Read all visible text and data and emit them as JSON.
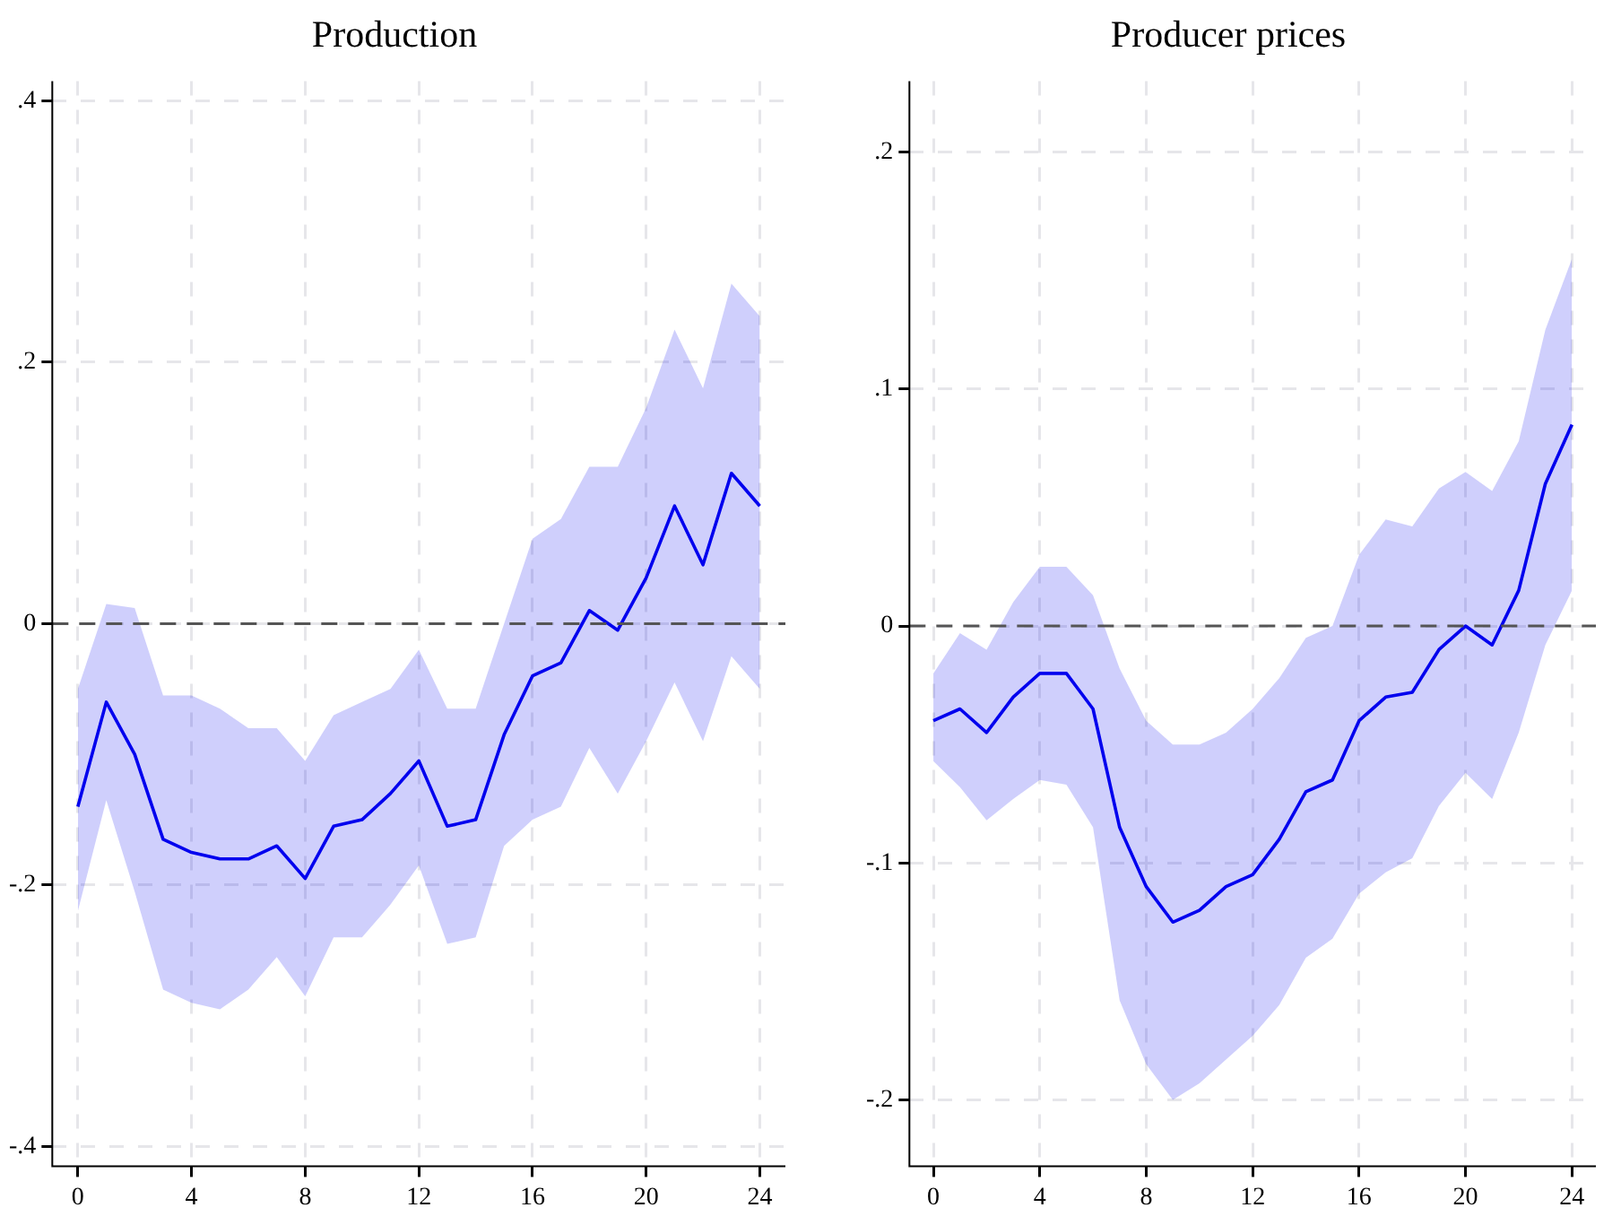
{
  "chart_data": [
    {
      "type": "line",
      "title": "Production",
      "x": [
        0,
        1,
        2,
        3,
        4,
        5,
        6,
        7,
        8,
        9,
        10,
        11,
        12,
        13,
        14,
        15,
        16,
        17,
        18,
        19,
        20,
        21,
        22,
        23,
        24
      ],
      "series": [
        {
          "color": "#0000ee",
          "values": [
            -0.14,
            -0.06,
            -0.1,
            -0.165,
            -0.175,
            -0.18,
            -0.18,
            -0.17,
            -0.195,
            -0.155,
            -0.15,
            -0.13,
            -0.105,
            -0.155,
            -0.15,
            -0.085,
            -0.04,
            -0.03,
            0.01,
            -0.005,
            0.035,
            0.09,
            0.045,
            0.115,
            0.09
          ],
          "lower": [
            -0.22,
            -0.135,
            -0.205,
            -0.28,
            -0.29,
            -0.295,
            -0.28,
            -0.255,
            -0.285,
            -0.24,
            -0.24,
            -0.215,
            -0.185,
            -0.245,
            -0.24,
            -0.17,
            -0.15,
            -0.14,
            -0.095,
            -0.13,
            -0.09,
            -0.045,
            -0.09,
            -0.025,
            -0.05
          ],
          "upper": [
            -0.05,
            0.015,
            0.012,
            -0.055,
            -0.055,
            -0.065,
            -0.08,
            -0.08,
            -0.105,
            -0.07,
            -0.06,
            -0.05,
            -0.02,
            -0.065,
            -0.065,
            0.0,
            0.065,
            0.08,
            0.12,
            0.12,
            0.165,
            0.225,
            0.18,
            0.26,
            0.235
          ]
        }
      ],
      "xlim": [
        -0.9,
        24.9
      ],
      "xticks": [
        0,
        4,
        8,
        12,
        16,
        20,
        24
      ],
      "ylim": [
        -0.415,
        0.415
      ],
      "yticks": [
        {
          "value": -0.4,
          "label": "-.4"
        },
        {
          "value": -0.2,
          "label": "-.2"
        },
        0,
        {
          "value": 0.2,
          "label": ".2"
        },
        {
          "value": 0.4,
          "label": ".4"
        }
      ],
      "grid": true,
      "marker": "none",
      "line_style": "solid",
      "ref_lines": [
        {
          "axis": "y",
          "value": 0,
          "color": "#555555",
          "line_style": "dashed"
        }
      ]
    },
    {
      "type": "line",
      "title": "Producer prices",
      "x": [
        0,
        1,
        2,
        3,
        4,
        5,
        6,
        7,
        8,
        9,
        10,
        11,
        12,
        13,
        14,
        15,
        16,
        17,
        18,
        19,
        20,
        21,
        22,
        23,
        24
      ],
      "series": [
        {
          "color": "#0000ee",
          "values": [
            -0.04,
            -0.035,
            -0.045,
            -0.03,
            -0.02,
            -0.02,
            -0.035,
            -0.085,
            -0.11,
            -0.125,
            -0.12,
            -0.11,
            -0.105,
            -0.09,
            -0.07,
            -0.065,
            -0.04,
            -0.03,
            -0.028,
            -0.01,
            0.0,
            -0.008,
            0.015,
            0.06,
            0.085
          ],
          "lower": [
            -0.057,
            -0.068,
            -0.082,
            -0.073,
            -0.065,
            -0.067,
            -0.085,
            -0.158,
            -0.185,
            -0.2,
            -0.193,
            -0.183,
            -0.173,
            -0.16,
            -0.14,
            -0.132,
            -0.113,
            -0.104,
            -0.098,
            -0.076,
            -0.062,
            -0.073,
            -0.045,
            -0.008,
            0.015
          ],
          "upper": [
            -0.02,
            -0.003,
            -0.01,
            0.01,
            0.025,
            0.025,
            0.013,
            -0.018,
            -0.04,
            -0.05,
            -0.05,
            -0.045,
            -0.035,
            -0.022,
            -0.005,
            0.0,
            0.03,
            0.045,
            0.042,
            0.058,
            0.065,
            0.057,
            0.078,
            0.125,
            0.155
          ]
        }
      ],
      "xlim": [
        -0.9,
        24.9
      ],
      "xticks": [
        0,
        4,
        8,
        12,
        16,
        20,
        24
      ],
      "ylim": [
        -0.228,
        0.23
      ],
      "yticks": [
        {
          "value": -0.2,
          "label": "-.2"
        },
        {
          "value": -0.1,
          "label": "-.1"
        },
        0,
        {
          "value": 0.1,
          "label": ".1"
        },
        {
          "value": 0.2,
          "label": ".2"
        }
      ],
      "grid": true,
      "marker": "none",
      "line_style": "solid",
      "ref_lines": [
        {
          "axis": "y",
          "value": 0,
          "color": "#555555",
          "line_style": "dashed"
        }
      ]
    }
  ]
}
